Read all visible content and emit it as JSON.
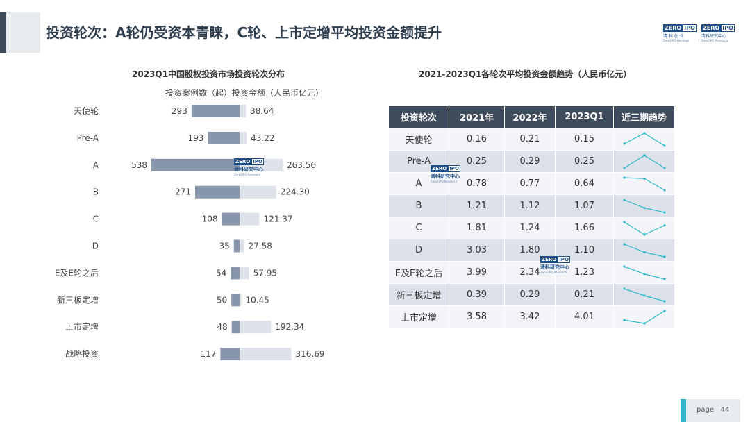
{
  "header": {
    "title": "投资轮次：A轮仍受资本青睐，C轮、上市定增平均投资金额提升"
  },
  "logos": [
    {
      "zero": "ZERO",
      "ipo": "IPO",
      "line1": "清 科 创 业",
      "line2": "Zero2IPO Holdings"
    },
    {
      "zero": "ZERO",
      "ipo": "IPO",
      "line1": "清科研究中心",
      "line2": "Zero2IPO Research"
    }
  ],
  "watermark": {
    "zero": "ZERO",
    "ipo": "IPO",
    "line1": "清科研究中心",
    "line2": "Zero2IPO Research"
  },
  "chart_data": [
    {
      "type": "bar",
      "title": "2023Q1中国股权投资市场投资轮次分布",
      "legend_text": "投资案例数（起）投资金额（人民币亿元）",
      "categories": [
        "天使轮",
        "Pre-A",
        "A",
        "B",
        "C",
        "D",
        "E及E轮之后",
        "新三板定增",
        "上市定增",
        "战略投资"
      ],
      "series": [
        {
          "values": [
            293,
            193,
            538,
            271,
            108,
            35,
            54,
            50,
            48,
            117
          ],
          "color": "#8796ab",
          "direction": "left"
        },
        {
          "values": [
            38.64,
            43.22,
            263.56,
            224.3,
            121.37,
            27.58,
            57.95,
            10.45,
            192.34,
            316.69
          ],
          "color": "#dde1ea",
          "direction": "right"
        }
      ],
      "value_labels": [
        [
          "293",
          "193",
          "538",
          "271",
          "108",
          "35",
          "54",
          "50",
          "48",
          "117"
        ],
        [
          "38.64",
          "43.22",
          "263.56",
          "224.30",
          "121.37",
          "27.58",
          "57.95",
          "10.45",
          "192.34",
          "316.69"
        ]
      ]
    },
    {
      "type": "table",
      "title": "2021-2023Q1各轮次平均投资金额趋势（人民币亿元）",
      "columns": [
        "投资轮次",
        "2021年",
        "2022年",
        "2023Q1",
        "近三期趋势"
      ],
      "rows": [
        {
          "round": "天使轮",
          "values": [
            "0.16",
            "0.21",
            "0.15"
          ]
        },
        {
          "round": "Pre-A",
          "values": [
            "0.25",
            "0.29",
            "0.25"
          ]
        },
        {
          "round": "A",
          "values": [
            "0.78",
            "0.77",
            "0.64"
          ]
        },
        {
          "round": "B",
          "values": [
            "1.21",
            "1.12",
            "1.07"
          ]
        },
        {
          "round": "C",
          "values": [
            "1.81",
            "1.24",
            "1.66"
          ]
        },
        {
          "round": "D",
          "values": [
            "3.03",
            "1.80",
            "1.10"
          ]
        },
        {
          "round": "E及E轮之后",
          "values": [
            "3.99",
            "2.34",
            "1.23"
          ]
        },
        {
          "round": "新三板定增",
          "values": [
            "0.39",
            "0.29",
            "0.21"
          ]
        },
        {
          "round": "上市定增",
          "values": [
            "3.58",
            "3.42",
            "4.01"
          ]
        }
      ],
      "sparkline_color": "#2bb8c9"
    }
  ],
  "footer": {
    "page_label": "page",
    "page_number": "44"
  }
}
